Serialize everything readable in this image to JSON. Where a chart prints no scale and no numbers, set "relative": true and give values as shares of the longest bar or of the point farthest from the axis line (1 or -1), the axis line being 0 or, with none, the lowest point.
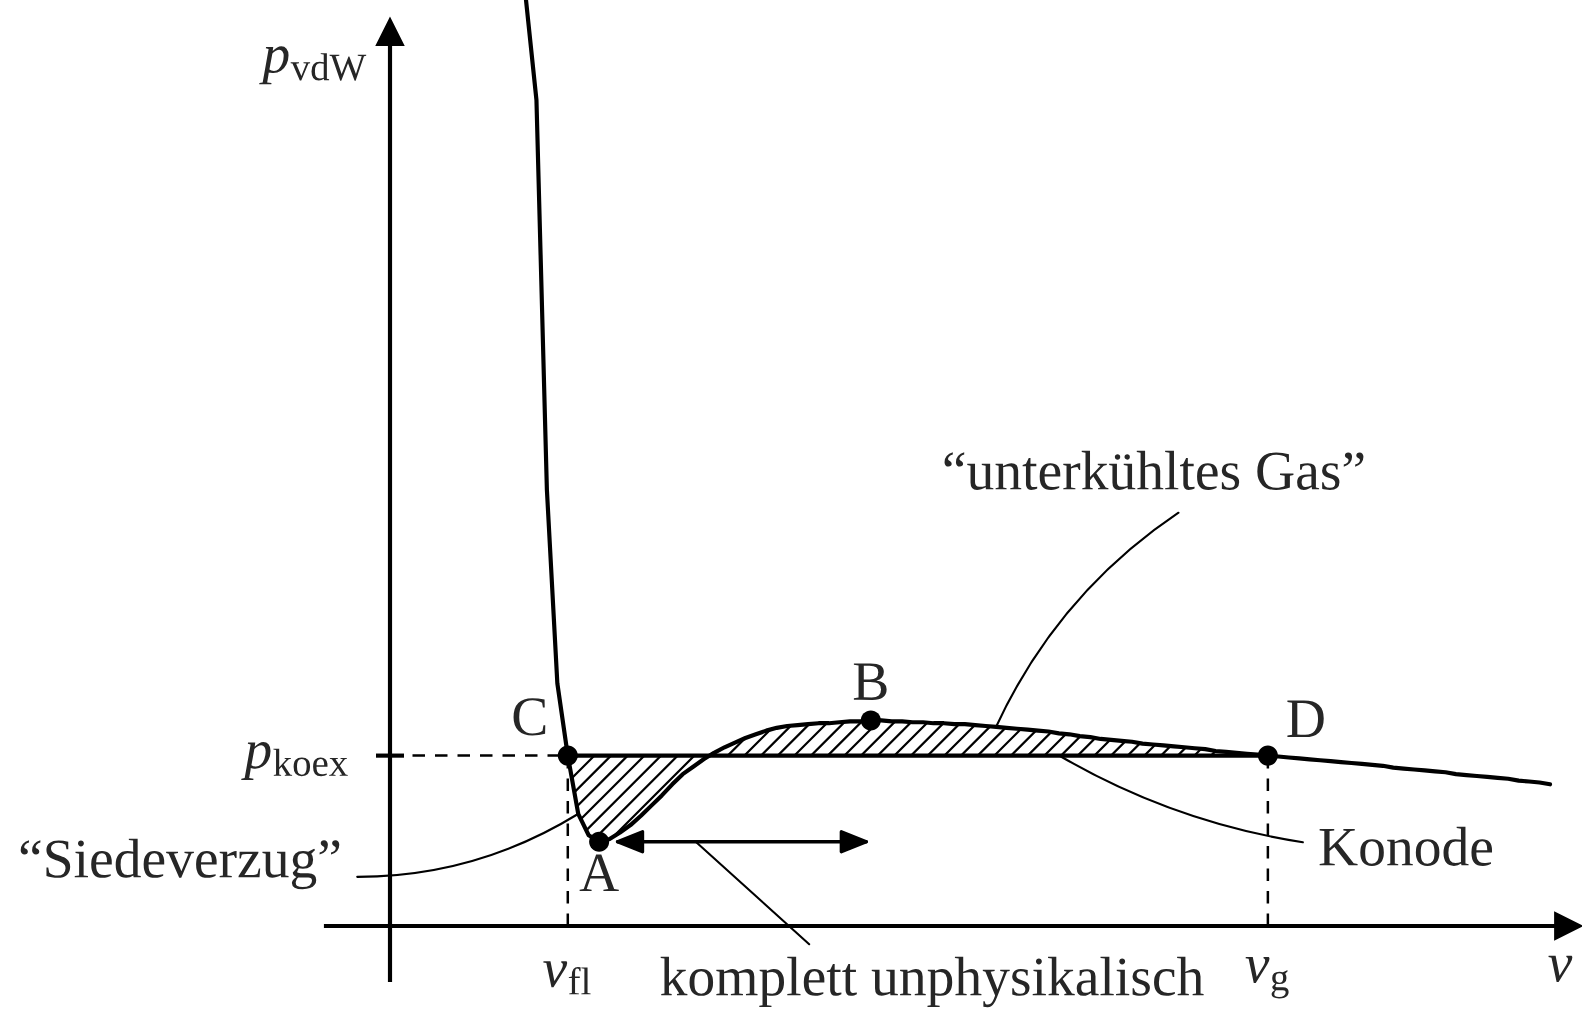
{
  "chart_data": {
    "type": "line",
    "relative": true,
    "xlabel": "v",
    "ylabel": "p$_{vdW}$",
    "categories": [
      null,
      null,
      null,
      null,
      "v$_{fl}$",
      null,
      null,
      null,
      null,
      null,
      null,
      null,
      null,
      null,
      null,
      null,
      null,
      null,
      null,
      null,
      null,
      null,
      null,
      null,
      null,
      null,
      null,
      null,
      null,
      null,
      null,
      null,
      null,
      null,
      null,
      null,
      null,
      null,
      null,
      null,
      null,
      null,
      null,
      null,
      null,
      null,
      null,
      null,
      null,
      null,
      null,
      null,
      null,
      null,
      null,
      null,
      null,
      null,
      null,
      null,
      null,
      null,
      null,
      null,
      null,
      null,
      null,
      null,
      null,
      null,
      null,
      "v$_{g}$",
      null,
      null,
      null,
      null,
      null,
      null,
      null,
      null,
      null,
      null,
      null,
      null,
      null,
      null,
      null,
      null,
      null,
      null,
      null,
      null,
      null,
      null,
      null,
      null,
      null,
      null,
      null
    ],
    "series": [
      {
        "color": "#000000",
        "values": [
          1.0,
          0.892,
          0.471,
          0.262,
          0.184,
          0.121,
          0.098,
          0.091,
          0.094,
          0.101,
          0.109,
          0.119,
          0.13,
          0.141,
          0.153,
          0.164,
          0.172,
          0.18,
          0.187,
          0.193,
          0.198,
          0.203,
          0.207,
          0.211,
          0.214,
          0.216,
          0.217,
          0.218,
          0.219,
          0.219,
          0.22,
          0.221,
          0.221,
          0.222,
          0.222,
          0.221,
          0.221,
          0.22,
          0.22,
          0.219,
          0.219,
          0.218,
          0.218,
          0.217,
          0.216,
          0.215,
          0.214,
          0.213,
          0.212,
          0.211,
          0.21,
          0.208,
          0.207,
          0.205,
          0.204,
          0.202,
          0.201,
          0.2,
          0.199,
          0.197,
          0.196,
          0.195,
          0.194,
          0.193,
          0.192,
          0.191,
          0.189,
          0.188,
          0.187,
          0.186,
          0.185,
          0.184,
          0.183,
          0.182,
          0.181,
          0.18,
          0.179,
          0.178,
          0.177,
          0.176,
          0.175,
          0.174,
          0.173,
          0.171,
          0.17,
          0.169,
          0.168,
          0.167,
          0.166,
          0.164,
          0.163,
          0.162,
          0.161,
          0.16,
          0.159,
          0.157,
          0.156,
          0.155,
          0.153
        ],
        "lower": [
          null,
          null,
          null,
          null,
          0.184,
          0.184,
          0.184,
          0.184,
          0.184,
          0.184,
          0.184,
          0.184,
          0.184,
          0.184,
          0.184,
          0.184,
          0.184,
          0.184,
          0.184,
          0.184,
          0.184,
          0.184,
          0.184,
          0.184,
          0.184,
          0.184,
          0.184,
          0.184,
          0.184,
          0.184,
          0.184,
          0.184,
          0.184,
          0.184,
          0.184,
          0.184,
          0.184,
          0.184,
          0.184,
          0.184,
          0.184,
          0.184,
          0.184,
          0.184,
          0.184,
          0.184,
          0.184,
          0.184,
          0.184,
          0.184,
          0.184,
          0.184,
          0.184,
          0.184,
          0.184,
          0.184,
          0.184,
          0.184,
          0.184,
          0.184,
          0.184,
          0.184,
          0.184,
          0.184,
          0.184,
          0.184,
          0.184,
          0.184,
          0.184,
          0.184,
          0.184,
          0.184,
          null,
          null,
          null,
          null,
          null,
          null,
          null,
          null,
          null,
          null,
          null,
          null,
          null,
          null,
          null,
          null,
          null,
          null,
          null,
          null,
          null,
          null,
          null,
          null,
          null,
          null,
          null
        ],
        "upper": [
          null,
          null,
          null,
          null,
          0.184,
          0.121,
          0.098,
          0.091,
          0.094,
          0.101,
          0.109,
          0.119,
          0.13,
          0.141,
          0.153,
          0.164,
          0.172,
          0.18,
          0.187,
          0.193,
          0.198,
          0.203,
          0.207,
          0.211,
          0.214,
          0.216,
          0.217,
          0.218,
          0.219,
          0.219,
          0.22,
          0.221,
          0.221,
          0.222,
          0.222,
          0.221,
          0.221,
          0.22,
          0.22,
          0.219,
          0.219,
          0.218,
          0.218,
          0.217,
          0.216,
          0.215,
          0.214,
          0.213,
          0.212,
          0.211,
          0.21,
          0.208,
          0.207,
          0.205,
          0.204,
          0.202,
          0.201,
          0.2,
          0.199,
          0.197,
          0.196,
          0.195,
          0.194,
          0.193,
          0.192,
          0.191,
          0.189,
          0.188,
          0.187,
          0.186,
          0.185,
          0.184,
          null,
          null,
          null,
          null,
          null,
          null,
          null,
          null,
          null,
          null,
          null,
          null,
          null,
          null,
          null,
          null,
          null,
          null,
          null,
          null,
          null,
          null,
          null,
          null,
          null,
          null,
          null
        ]
      },
      {
        "color": "#000000",
        "values": [
          null,
          null,
          null,
          null,
          0.184,
          0.184,
          0.184,
          0.184,
          0.184,
          0.184,
          0.184,
          0.184,
          0.184,
          0.184,
          0.184,
          0.184,
          0.184,
          0.184,
          0.184,
          0.184,
          0.184,
          0.184,
          0.184,
          0.184,
          0.184,
          0.184,
          0.184,
          0.184,
          0.184,
          0.184,
          0.184,
          0.184,
          0.184,
          0.184,
          0.184,
          0.184,
          0.184,
          0.184,
          0.184,
          0.184,
          0.184,
          0.184,
          0.184,
          0.184,
          0.184,
          0.184,
          0.184,
          0.184,
          0.184,
          0.184,
          0.184,
          0.184,
          0.184,
          0.184,
          0.184,
          0.184,
          0.184,
          0.184,
          0.184,
          0.184,
          0.184,
          0.184,
          0.184,
          0.184,
          0.184,
          0.184,
          0.184,
          0.184,
          0.184,
          0.184,
          0.184,
          0.184,
          null,
          null,
          null,
          null,
          null,
          null,
          null,
          null,
          null,
          null,
          null,
          null,
          null,
          null,
          null,
          null,
          null,
          null,
          null,
          null,
          null,
          null,
          null,
          null,
          null,
          null,
          null
        ]
      },
      {
        "type": "lollipop",
        "color": "#000000",
        "marker": "circle",
        "line_style": "dashed",
        "values": [
          null,
          null,
          null,
          null,
          0.184,
          null,
          null,
          null,
          null,
          null,
          null,
          null,
          null,
          null,
          null,
          null,
          null,
          null,
          null,
          null,
          null,
          null,
          null,
          null,
          null,
          null,
          null,
          null,
          null,
          null,
          null,
          null,
          null,
          null,
          null,
          null,
          null,
          null,
          null,
          null,
          null,
          null,
          null,
          null,
          null,
          null,
          null,
          null,
          null,
          null,
          null,
          null,
          null,
          null,
          null,
          null,
          null,
          null,
          null,
          null,
          null,
          null,
          null,
          null,
          null,
          null,
          null,
          null,
          null,
          null,
          null,
          0.184,
          null,
          null,
          null,
          null,
          null,
          null,
          null,
          null,
          null,
          null,
          null,
          null,
          null,
          null,
          null,
          null,
          null,
          null,
          null,
          null,
          null,
          null,
          null,
          null,
          null,
          null,
          null
        ]
      },
      {
        "type": "scatter",
        "color": "#000000",
        "marker": "circle",
        "values": [
          null,
          null,
          null,
          null,
          null,
          null,
          null,
          0.091,
          null,
          null,
          null,
          null,
          null,
          null,
          null,
          null,
          null,
          null,
          null,
          null,
          null,
          null,
          null,
          null,
          null,
          null,
          null,
          null,
          null,
          null,
          null,
          null,
          null,
          0.222,
          null,
          null,
          null,
          null,
          null,
          null,
          null,
          null,
          null,
          null,
          null,
          null,
          null,
          null,
          null,
          null,
          null,
          null,
          null,
          null,
          null,
          null,
          null,
          null,
          null,
          null,
          null,
          null,
          null,
          null,
          null,
          null,
          null,
          null,
          null,
          null,
          null,
          null,
          null,
          null,
          null,
          null,
          null,
          null,
          null,
          null,
          null,
          null,
          null,
          null,
          null,
          null,
          null,
          null,
          null,
          null,
          null,
          null,
          null,
          null,
          null,
          null,
          null,
          null,
          null
        ]
      }
    ],
    "ref_lines": [
      {
        "axis": "y",
        "value": 0.184,
        "label": "p$_{koex}$",
        "line_style": "dashed"
      }
    ],
    "annotations": [
      "A",
      "B",
      "C",
      "D",
      "“Siedeverzug”",
      "“unterkühltes Gas”",
      "Konode",
      "komplett unphysikalisch"
    ]
  }
}
